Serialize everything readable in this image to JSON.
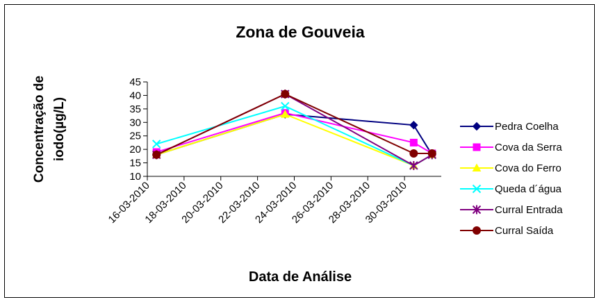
{
  "chart_data": {
    "type": "line",
    "title": "Zona de Gouveia",
    "y_label": [
      "Concentração de",
      "iodo(µg/L)"
    ],
    "x_label": "Data de Análise",
    "x": [
      "16-03-2010",
      "23-03-2010",
      "30-03-2010",
      "31-03-2010"
    ],
    "xlim": [
      "16-03-2010",
      "01-04-2010"
    ],
    "xticks": [
      "16-03-2010",
      "18-03-2010",
      "20-03-2010",
      "22-03-2010",
      "24-03-2010",
      "26-03-2010",
      "28-03-2010",
      "30-03-2010"
    ],
    "ylim": [
      10,
      45
    ],
    "yticks": [
      10,
      15,
      20,
      25,
      30,
      35,
      40,
      45
    ],
    "grid": false,
    "legend": "right",
    "series": [
      {
        "name": "Pedra Coelha",
        "color": "#000080",
        "marker": "diamond",
        "values": [
          18,
          33,
          29,
          18
        ]
      },
      {
        "name": "Cova da Serra",
        "color": "#ff00ff",
        "marker": "square",
        "values": [
          19,
          33.5,
          22.5,
          18.5
        ]
      },
      {
        "name": "Cova do Ferro",
        "color": "#ffff00",
        "marker": "triangle",
        "values": [
          18,
          33,
          14,
          18
        ]
      },
      {
        "name": "Queda d´água",
        "color": "#00ffff",
        "marker": "x",
        "values": [
          22,
          36,
          14,
          18
        ]
      },
      {
        "name": "Curral Entrada",
        "color": "#800080",
        "marker": "star",
        "values": [
          18,
          40.5,
          14,
          18
        ]
      },
      {
        "name": "Curral Saída",
        "color": "#800000",
        "marker": "circle",
        "values": [
          18,
          40.5,
          18.5,
          18.5
        ]
      }
    ]
  }
}
